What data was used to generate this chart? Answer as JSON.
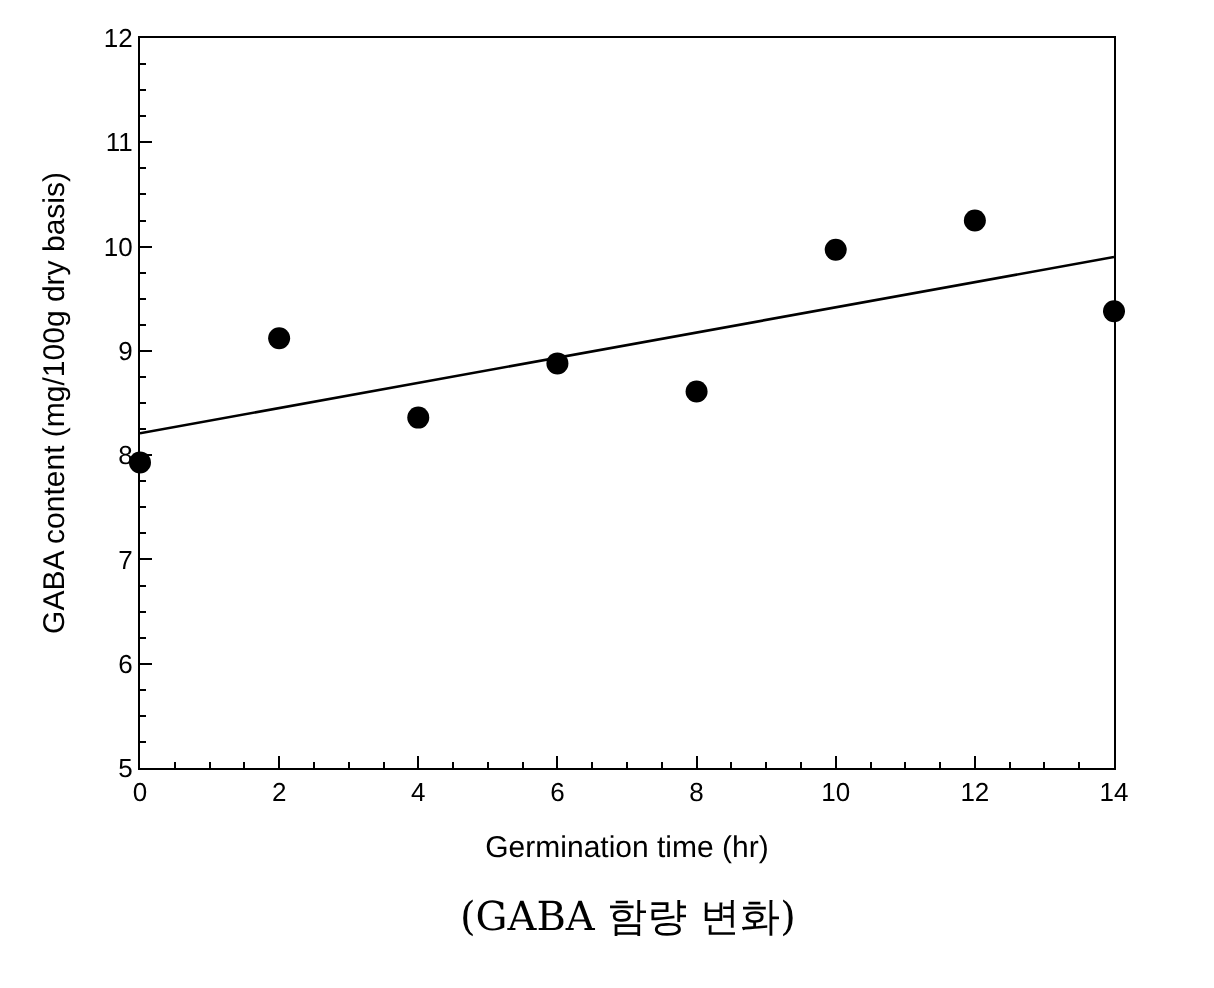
{
  "chart_data": {
    "type": "scatter",
    "xlabel": "Germination time (hr)",
    "ylabel": "GABA content (mg/100g dry basis)",
    "annotations": [
      "(GABA 함량 변화)"
    ],
    "series": [
      {
        "color": "#000000",
        "x": [
          0,
          2,
          4,
          6,
          8,
          10,
          12,
          14
        ],
        "values": [
          7.93,
          9.12,
          8.36,
          8.88,
          8.61,
          9.97,
          10.25,
          9.38
        ]
      },
      {
        "type": "line",
        "marker": "none",
        "color": "#000000",
        "x": [
          0,
          14
        ],
        "values": [
          8.21,
          9.9
        ]
      }
    ],
    "marker": "circle",
    "xlim": [
      0,
      14
    ],
    "ylim": [
      5,
      12
    ],
    "xticks": [
      0,
      2,
      4,
      6,
      8,
      10,
      12,
      14
    ],
    "yticks": [
      5,
      6,
      7,
      8,
      9,
      10,
      11,
      12
    ]
  }
}
